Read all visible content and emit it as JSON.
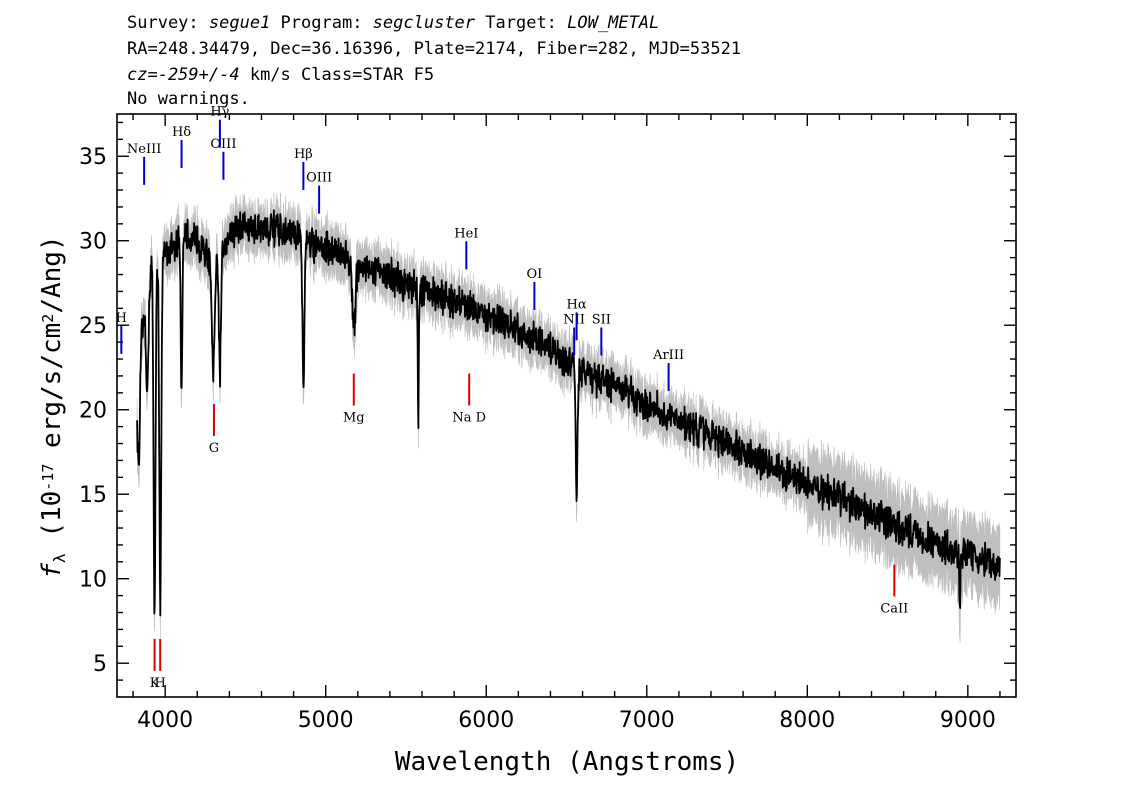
{
  "header": {
    "line1": [
      {
        "text": "Survey: ",
        "italic": false
      },
      {
        "text": "segue1",
        "italic": true
      },
      {
        "text": " Program: ",
        "italic": false
      },
      {
        "text": "segcluster",
        "italic": true
      },
      {
        "text": " Target: ",
        "italic": false
      },
      {
        "text": "LOW_METAL",
        "italic": true
      }
    ],
    "line2": "RA=248.34479, Dec=36.16396, Plate=2174, Fiber=282, MJD=53521",
    "line3": [
      {
        "text": "cz=-259+/-4",
        "italic": true
      },
      {
        "text": " km/s Class=STAR F5",
        "italic": false
      }
    ],
    "line4": "No warnings."
  },
  "colors": {
    "flux": "#000000",
    "error_band": "#bebebe",
    "emission_marker": "#0000cc",
    "absorption_marker": "#dd0000"
  },
  "chart_data": {
    "type": "line",
    "xlabel": "Wavelength (Angstroms)",
    "ylabel_parts": [
      "f",
      "λ",
      " (10",
      "-17",
      " erg/s/cm",
      "2",
      "/Ang)"
    ],
    "xlim": [
      3700,
      9300
    ],
    "ylim": [
      3,
      37.5
    ],
    "xticks": [
      4000,
      5000,
      6000,
      7000,
      8000,
      9000
    ],
    "yticks": [
      5,
      10,
      15,
      20,
      25,
      30,
      35
    ],
    "continuum": {
      "x": [
        3830,
        3900,
        4000,
        4100,
        4200,
        4300,
        4400,
        4500,
        4600,
        4700,
        4800,
        4900,
        5000,
        5200,
        5400,
        5600,
        5800,
        6000,
        6200,
        6400,
        6600,
        6800,
        7000,
        7300,
        7600,
        7900,
        8200,
        8500,
        8800,
        9000,
        9200
      ],
      "y": [
        22.5,
        28.5,
        29.2,
        30.3,
        30.0,
        28.5,
        30.5,
        30.8,
        30.7,
        30.6,
        30.3,
        29.9,
        29.6,
        28.6,
        27.9,
        27.1,
        26.4,
        25.6,
        24.7,
        23.5,
        22.2,
        21.4,
        20.3,
        18.9,
        17.5,
        16.0,
        14.8,
        13.3,
        12.1,
        11.5,
        10.7
      ]
    },
    "absorption_features": [
      {
        "center": 3835,
        "depth": 6.0,
        "width": 8
      },
      {
        "center": 3889,
        "depth": 6.5,
        "width": 8
      },
      {
        "center": 3934,
        "depth": 21.0,
        "width": 6
      },
      {
        "center": 3970,
        "depth": 20.5,
        "width": 6
      },
      {
        "center": 4102,
        "depth": 9.5,
        "width": 5
      },
      {
        "center": 4300,
        "depth": 6.0,
        "width": 10
      },
      {
        "center": 4341,
        "depth": 7.5,
        "width": 6
      },
      {
        "center": 4861,
        "depth": 8.5,
        "width": 6
      },
      {
        "center": 5175,
        "depth": 4.0,
        "width": 10
      },
      {
        "center": 5577,
        "depth": 8.0,
        "width": 3
      },
      {
        "center": 6563,
        "depth": 7.0,
        "width": 6
      },
      {
        "center": 8950,
        "depth": 3.5,
        "width": 4
      }
    ],
    "lines": [
      {
        "label": "H",
        "lambda": 3727,
        "kind": "emission",
        "label_y": 25.2
      },
      {
        "label": "NeIII",
        "lambda": 3869,
        "kind": "emission",
        "label_y": 35.2
      },
      {
        "label": "Hδ",
        "lambda": 4102,
        "kind": "emission",
        "label_y": 36.2
      },
      {
        "label": "Hγ",
        "lambda": 4341,
        "kind": "emission",
        "label_y": 37.4
      },
      {
        "label": "OIII",
        "lambda": 4363,
        "kind": "emission",
        "label_y": 35.5
      },
      {
        "label": "Hβ",
        "lambda": 4861,
        "kind": "emission",
        "label_y": 34.9
      },
      {
        "label": "OIII",
        "lambda": 4959,
        "kind": "emission",
        "label_y": 33.5
      },
      {
        "label": "HeI",
        "lambda": 5876,
        "kind": "emission",
        "label_y": 30.2
      },
      {
        "label": "OI",
        "lambda": 6300,
        "kind": "emission",
        "label_y": 27.8
      },
      {
        "label": "NII",
        "lambda": 6548,
        "kind": "emission",
        "label_y": 25.1
      },
      {
        "label": "Hα",
        "lambda": 6563,
        "kind": "emission",
        "label_y": 26.0
      },
      {
        "label": "SII",
        "lambda": 6717,
        "kind": "emission",
        "label_y": 25.1
      },
      {
        "label": "ArIII",
        "lambda": 7136,
        "kind": "emission",
        "label_y": 23.0
      },
      {
        "label": "K",
        "lambda": 3934,
        "kind": "absorption",
        "label_y": 3.6
      },
      {
        "label": "H",
        "lambda": 3969,
        "kind": "absorption",
        "label_y": 3.6
      },
      {
        "label": "G",
        "lambda": 4304,
        "kind": "absorption",
        "label_y": 17.5
      },
      {
        "label": "Mg",
        "lambda": 5175,
        "kind": "absorption",
        "label_y": 19.3
      },
      {
        "label": "Na D",
        "lambda": 5894,
        "kind": "absorption",
        "label_y": 19.3
      },
      {
        "label": "CaII",
        "lambda": 8542,
        "kind": "absorption",
        "label_y": 8.0
      }
    ]
  }
}
